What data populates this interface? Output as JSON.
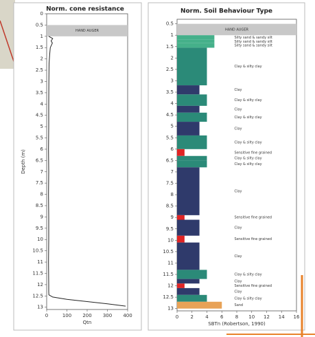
{
  "chart_data": [
    {
      "type": "line",
      "title": "Norm. cone resistance",
      "x_label": "Qtn",
      "y_label": "Depth (m)",
      "xlim": [
        0,
        400
      ],
      "xticks": [
        0,
        100,
        200,
        300,
        400
      ],
      "ylim": [
        0,
        13.1
      ],
      "yticks": [
        0,
        0.5,
        1,
        1.5,
        2,
        2.5,
        3,
        3.5,
        4,
        4.5,
        5,
        5.5,
        6,
        6.5,
        7,
        7.5,
        8,
        8.5,
        9,
        9.5,
        10,
        10.5,
        11,
        11.5,
        12,
        12.5,
        13
      ],
      "grid": false,
      "hand_auger": {
        "top": 0.5,
        "bottom": 1,
        "label": "HAND AUGER"
      },
      "series": [
        {
          "color": "#222222",
          "x": [
            10,
            30,
            22,
            28,
            18,
            15,
            12,
            11,
            10,
            10,
            9,
            10,
            9,
            10,
            10,
            9,
            10,
            10,
            11,
            30,
            100,
            200,
            300,
            390
          ],
          "y": [
            1.0,
            1.1,
            1.2,
            1.3,
            1.5,
            1.8,
            2.2,
            3.0,
            4.0,
            5.0,
            6.0,
            7.0,
            8.0,
            9.0,
            10.0,
            11.0,
            12.0,
            12.3,
            12.45,
            12.55,
            12.65,
            12.75,
            12.85,
            12.95
          ]
        }
      ]
    },
    {
      "type": "bar",
      "title": "Norm. Soil Behaviour Type",
      "x_label": "SBTn (Robertson, 1990)",
      "xlim": [
        0,
        16
      ],
      "xticks": [
        0,
        2,
        4,
        6,
        8,
        10,
        12,
        14,
        16
      ],
      "ylim": [
        0.3,
        13.1
      ],
      "yticks": [
        0.5,
        1,
        1.5,
        2,
        2.5,
        3,
        3.5,
        4,
        4.5,
        5,
        5.5,
        6,
        6.5,
        7,
        7.5,
        8,
        8.5,
        9,
        9.5,
        10,
        10.5,
        11,
        11.5,
        12,
        12.5,
        13
      ],
      "grid": false,
      "hand_auger": {
        "top": 0.5,
        "bottom": 1,
        "label": "HAND AUGER"
      },
      "zone_colors": {
        "1": "#e02424",
        "3": "#2f3a6b",
        "4": "#2b8a78",
        "5": "#45b08a",
        "6": "#e8a257"
      },
      "layers": [
        {
          "top": 1.0,
          "bottom": 1.2,
          "zone": 5,
          "label": "Silty sand & sandy silt"
        },
        {
          "top": 1.2,
          "bottom": 1.35,
          "zone": 5,
          "label": "Silty sand & sandy silt"
        },
        {
          "top": 1.35,
          "bottom": 1.55,
          "zone": 5,
          "label": "Silty sand & sandy silt"
        },
        {
          "top": 1.55,
          "bottom": 3.2,
          "zone": 4,
          "label": "Clay & silty clay"
        },
        {
          "top": 3.2,
          "bottom": 3.6,
          "zone": 3,
          "label": "Clay"
        },
        {
          "top": 3.6,
          "bottom": 4.1,
          "zone": 4,
          "label": "Clay & silty clay"
        },
        {
          "top": 4.1,
          "bottom": 4.4,
          "zone": 3,
          "label": "Clay"
        },
        {
          "top": 4.4,
          "bottom": 4.8,
          "zone": 4,
          "label": "Clay & silty clay"
        },
        {
          "top": 4.8,
          "bottom": 5.4,
          "zone": 3,
          "label": "Clay"
        },
        {
          "top": 5.4,
          "bottom": 6.0,
          "zone": 4,
          "label": "Clay & silty clay"
        },
        {
          "top": 6.0,
          "bottom": 6.3,
          "zone": 1,
          "label": "Sensitive fine grained"
        },
        {
          "top": 6.3,
          "bottom": 6.5,
          "zone": 4,
          "label": "Clay & silty clay"
        },
        {
          "top": 6.5,
          "bottom": 6.8,
          "zone": 4,
          "label": "Clay & silty clay"
        },
        {
          "top": 6.8,
          "bottom": 8.9,
          "zone": 3,
          "label": "Clay"
        },
        {
          "top": 8.9,
          "bottom": 9.1,
          "zone": 1,
          "label": "Sensitive fine grained"
        },
        {
          "top": 9.1,
          "bottom": 9.8,
          "zone": 3,
          "label": "Clay"
        },
        {
          "top": 9.8,
          "bottom": 10.1,
          "zone": 1,
          "label": "Sensitive fine grained"
        },
        {
          "top": 10.1,
          "bottom": 11.3,
          "zone": 3,
          "label": "Clay"
        },
        {
          "top": 11.3,
          "bottom": 11.7,
          "zone": 4,
          "label": "Clay & silty clay"
        },
        {
          "top": 11.7,
          "bottom": 11.9,
          "zone": 3,
          "label": "Clay"
        },
        {
          "top": 11.9,
          "bottom": 12.1,
          "zone": 1,
          "label": "Sensitive fine grained"
        },
        {
          "top": 12.1,
          "bottom": 12.4,
          "zone": 3,
          "label": "Clay"
        },
        {
          "top": 12.4,
          "bottom": 12.7,
          "zone": 4,
          "label": "Clay & silty clay"
        },
        {
          "top": 12.7,
          "bottom": 13.0,
          "zone": 6,
          "label": "Sand"
        }
      ]
    }
  ]
}
